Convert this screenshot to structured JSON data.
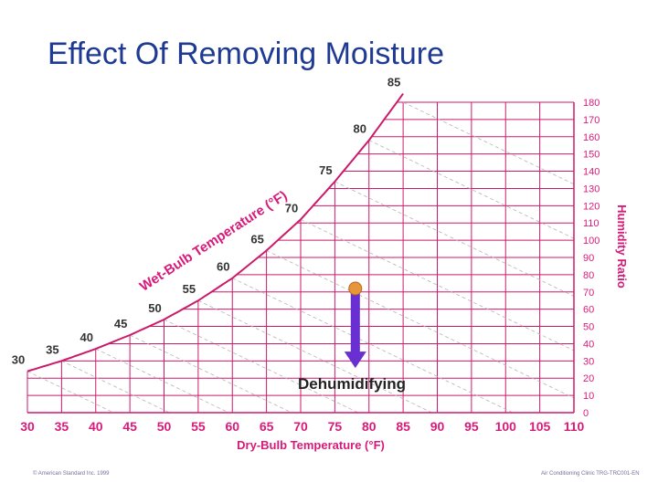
{
  "title": "Effect Of Removing Moisture",
  "chart_data": {
    "type": "psychrometric",
    "xlabel": "Dry-Bulb Temperature (°F)",
    "ylabel": "Humidity Ratio",
    "wetbulb_label": "Wet-Bulb Temperature (°F)",
    "xlim": [
      30,
      110
    ],
    "ylim": [
      0,
      180
    ],
    "x_ticks": [
      30,
      35,
      40,
      45,
      50,
      55,
      60,
      65,
      70,
      75,
      80,
      85,
      90,
      95,
      100,
      105,
      110
    ],
    "y_ticks": [
      0,
      10,
      20,
      30,
      40,
      50,
      60,
      70,
      80,
      90,
      100,
      110,
      120,
      130,
      140,
      150,
      160,
      170,
      180
    ],
    "saturation_curve": {
      "x": [
        30,
        35,
        40,
        45,
        50,
        55,
        60,
        65,
        70,
        75,
        80,
        85
      ],
      "y": [
        24,
        30,
        37,
        45,
        54,
        65,
        78,
        94,
        112,
        134,
        158,
        185
      ]
    },
    "wetbulb_labels": [
      {
        "text": "30",
        "x": 30,
        "y": 24
      },
      {
        "text": "35",
        "x": 35,
        "y": 30
      },
      {
        "text": "40",
        "x": 40,
        "y": 37
      },
      {
        "text": "45",
        "x": 45,
        "y": 45
      },
      {
        "text": "50",
        "x": 50,
        "y": 54
      },
      {
        "text": "55",
        "x": 55,
        "y": 65
      },
      {
        "text": "60",
        "x": 60,
        "y": 78
      },
      {
        "text": "65",
        "x": 65,
        "y": 94
      },
      {
        "text": "70",
        "x": 70,
        "y": 112
      },
      {
        "text": "75",
        "x": 75,
        "y": 134
      },
      {
        "text": "80",
        "x": 80,
        "y": 158
      },
      {
        "text": "85",
        "x": 85,
        "y": 185
      }
    ],
    "process": {
      "label": "Dehumidifying",
      "start": {
        "x": 78,
        "y": 72
      },
      "end": {
        "x": 78,
        "y": 28
      }
    },
    "colors": {
      "grid": "#cc1a6a",
      "axis_text": "#d81b7a",
      "title": "#1f3a93",
      "arrow": "#6a2fd0",
      "point": "#e8963a"
    }
  },
  "footer": {
    "left": "© American Standard Inc. 1999",
    "right": "Air Conditioning Clinic TRG-TRC001-EN"
  }
}
